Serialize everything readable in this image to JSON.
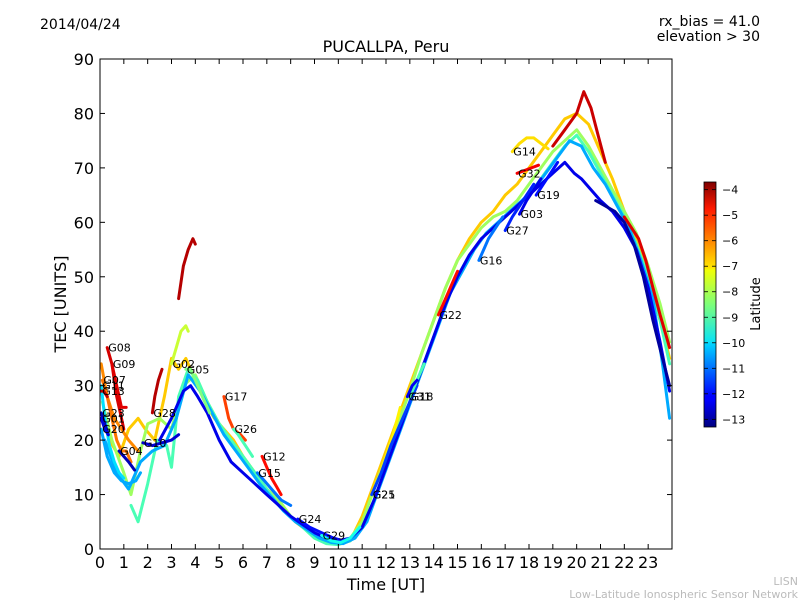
{
  "header": {
    "date": "2014/04/24",
    "rx_bias": "rx_bias = 41.0",
    "elevation": "elevation > 30"
  },
  "footer": {
    "line1": "LISN",
    "line2": "Low-Latitude Ionospheric Sensor Network"
  },
  "colorbar": {
    "label": "Latitude",
    "ticks": [
      "-4",
      "-5",
      "-6",
      "-7",
      "-8",
      "-9",
      "-10",
      "-11",
      "-12",
      "-13"
    ],
    "tick_values": [
      -4,
      -5,
      -6,
      -7,
      -8,
      -9,
      -10,
      -11,
      -12,
      -13
    ],
    "range": [
      -13.3,
      -3.7
    ]
  },
  "chart_data": {
    "type": "line",
    "title": "PUCALLPA, Peru",
    "xlabel": "Time [UT]",
    "ylabel": "TEC [UNITS]",
    "xlim": [
      0,
      24
    ],
    "ylim": [
      0,
      90
    ],
    "xticks": [
      0,
      1,
      2,
      3,
      4,
      5,
      6,
      7,
      8,
      9,
      10,
      11,
      12,
      13,
      14,
      15,
      16,
      17,
      18,
      19,
      20,
      21,
      22,
      23
    ],
    "yticks": [
      0,
      10,
      20,
      30,
      40,
      50,
      60,
      70,
      80,
      90
    ],
    "grid": false,
    "series": [
      {
        "name": "G08",
        "lat": -4.5,
        "x": [
          0.3,
          0.5,
          0.7,
          0.9,
          1.0
        ],
        "y": [
          37,
          34,
          28,
          24,
          22
        ]
      },
      {
        "name": "G09",
        "lat": -4.6,
        "x": [
          0.5,
          0.7,
          0.9,
          1.1
        ],
        "y": [
          34,
          30,
          26,
          26
        ]
      },
      {
        "name": "G07",
        "lat": -6.0,
        "x": [
          0.1,
          0.3,
          0.5,
          0.7,
          0.9,
          1.1,
          1.3
        ],
        "y": [
          31,
          28,
          24,
          20,
          18,
          18,
          16
        ]
      },
      {
        "name": "G11",
        "lat": -10.0,
        "x": [
          0.05,
          0.2,
          0.4,
          0.6,
          0.8,
          1.0
        ],
        "y": [
          30,
          24,
          19,
          16,
          14,
          13
        ]
      },
      {
        "name": "G13",
        "lat": -4.3,
        "x": [
          0.05,
          0.15,
          0.3
        ],
        "y": [
          29,
          29,
          28
        ]
      },
      {
        "name": "G23",
        "lat": -12.8,
        "x": [
          0.05,
          0.2,
          0.35
        ],
        "y": [
          25,
          23,
          21
        ]
      },
      {
        "name": "G01",
        "lat": -12.4,
        "x": [
          0.05,
          0.2,
          0.35
        ],
        "y": [
          24,
          22,
          21
        ]
      },
      {
        "name": "G20",
        "lat": -10.5,
        "x": [
          0.05,
          0.3,
          0.6,
          0.9,
          1.2,
          1.5,
          1.7
        ],
        "y": [
          22,
          17,
          14,
          12.5,
          12,
          12.5,
          14
        ]
      },
      {
        "name": "G04",
        "lat": -12.8,
        "x": [
          0.8,
          1.0,
          1.2,
          1.45
        ],
        "y": [
          18,
          17,
          16,
          14.5
        ]
      },
      {
        "name": "G10",
        "lat": -12.5,
        "x": [
          1.8,
          2.2,
          2.6,
          3.0,
          3.3
        ],
        "y": [
          19.5,
          19,
          19.5,
          20,
          21
        ]
      },
      {
        "name": "G28",
        "lat": -4.2,
        "x": [
          2.2,
          2.3,
          2.45,
          2.6
        ],
        "y": [
          25,
          28,
          31,
          33
        ]
      },
      {
        "name": "G02",
        "lat": -7.8,
        "x": [
          3.0,
          3.2,
          3.4,
          3.6,
          3.7
        ],
        "y": [
          34,
          37,
          40,
          41,
          40
        ]
      },
      {
        "name": "G05",
        "lat": -8.5,
        "x": [
          3.6,
          3.8,
          4.0,
          4.3,
          4.6
        ],
        "y": [
          33,
          33,
          31,
          28,
          25
        ]
      },
      {
        "name": "G17",
        "lat": -5.5,
        "x": [
          5.2,
          5.4,
          5.6,
          5.9,
          6.1
        ],
        "y": [
          28,
          24,
          22,
          21,
          20
        ]
      },
      {
        "name": "G26",
        "lat": -9.0,
        "x": [
          5.6,
          5.8,
          6.1,
          6.4
        ],
        "y": [
          22,
          21,
          19,
          17
        ]
      },
      {
        "name": "G12",
        "lat": -5.0,
        "x": [
          6.8,
          7.0,
          7.2,
          7.4,
          7.6
        ],
        "y": [
          17,
          15,
          13,
          11.5,
          10
        ]
      },
      {
        "name": "G15",
        "lat": -11.0,
        "x": [
          6.6,
          6.9,
          7.2,
          7.6,
          8.0
        ],
        "y": [
          14,
          12.5,
          11,
          9,
          8
        ]
      },
      {
        "name": "G24",
        "lat": -12.0,
        "x": [
          8.3,
          8.8,
          9.3,
          9.8,
          10.2
        ],
        "y": [
          5.5,
          4,
          3,
          2,
          1.5
        ]
      },
      {
        "name": "G29",
        "lat": -9.5,
        "x": [
          9.3,
          9.7,
          10.1,
          10.5,
          10.9
        ],
        "y": [
          2.5,
          1.5,
          1.2,
          2,
          4
        ]
      },
      {
        "name": "G25",
        "lat": -7.2,
        "x": [
          11.4,
          11.7,
          12.0,
          12.3,
          12.6
        ],
        "y": [
          10,
          13,
          17,
          21,
          26
        ]
      },
      {
        "name": "G21",
        "lat": -11.5,
        "x": [
          11.4,
          11.8,
          12.2,
          12.6,
          13.0,
          13.3
        ],
        "y": [
          10,
          14,
          19,
          23,
          27,
          30
        ]
      },
      {
        "name": "G18",
        "lat": -9.0,
        "x": [
          13.0,
          13.3,
          13.6
        ],
        "y": [
          28,
          31,
          34
        ]
      },
      {
        "name": "G31",
        "lat": -12.2,
        "x": [
          12.9,
          13.1,
          13.3
        ],
        "y": [
          28,
          30,
          31
        ]
      },
      {
        "name": "G22",
        "lat": -5.0,
        "x": [
          14.2,
          14.4,
          14.6,
          14.8,
          15.0
        ],
        "y": [
          43,
          45,
          47,
          49,
          51
        ]
      },
      {
        "name": "G16",
        "lat": -11.0,
        "x": [
          15.9,
          16.1,
          16.3,
          16.6,
          16.9
        ],
        "y": [
          53,
          55,
          57,
          59,
          61
        ]
      },
      {
        "name": "G27",
        "lat": -11.8,
        "x": [
          17.0,
          17.3,
          17.6,
          17.9,
          18.2
        ],
        "y": [
          58.5,
          61,
          63,
          65,
          67
        ]
      },
      {
        "name": "G03",
        "lat": -12.3,
        "x": [
          17.6,
          17.9,
          18.2,
          18.5
        ],
        "y": [
          61.5,
          64,
          66,
          68
        ]
      },
      {
        "name": "G19",
        "lat": -12.0,
        "x": [
          18.3,
          18.6,
          18.9,
          19.2
        ],
        "y": [
          65,
          67,
          69,
          71
        ]
      },
      {
        "name": "G32",
        "lat": -4.8,
        "x": [
          17.5,
          17.8,
          18.1,
          18.4
        ],
        "y": [
          69,
          69.5,
          70,
          70.5
        ]
      },
      {
        "name": "G14",
        "lat": -7.0,
        "x": [
          17.3,
          17.6,
          17.9,
          18.2,
          18.5,
          18.8
        ],
        "y": [
          73,
          74.5,
          75.5,
          75.5,
          74.5,
          73.5
        ]
      }
    ],
    "background_curves": [
      {
        "lat": -6.8,
        "x": [
          0.4,
          0.8,
          1.2,
          1.6,
          1.9,
          2.3,
          2.7,
          3.0,
          3.3,
          3.6,
          3.8,
          4.1,
          4.4,
          4.8,
          5.2,
          5.6,
          6.0,
          6.5,
          7.0,
          7.6,
          8.2,
          8.8,
          9.4,
          10.0,
          10.5,
          11.0,
          11.5,
          12.0,
          12.5,
          13.0,
          13.5,
          14.0,
          14.5,
          15.0,
          15.5,
          16.0,
          16.5,
          17.0,
          17.5,
          18.0,
          18.5,
          19.0,
          19.5,
          20.0,
          20.5,
          21.0,
          21.5,
          22.0,
          22.5,
          23.0,
          23.5,
          23.9
        ],
        "y": [
          20,
          17,
          22,
          24,
          22,
          20,
          28,
          35,
          33,
          35,
          33,
          30,
          27,
          24,
          22,
          20,
          17,
          14,
          11,
          8,
          5,
          3,
          1.5,
          0.8,
          1.5,
          6,
          12,
          18,
          24,
          30,
          36,
          42,
          48,
          53,
          57,
          60,
          62,
          65,
          67,
          70,
          73,
          76,
          79,
          80,
          78,
          73,
          68,
          62,
          57,
          50,
          42,
          35
        ]
      },
      {
        "lat": -8.2,
        "x": [
          0.1,
          0.5,
          1.0,
          1.3,
          1.7,
          2.0,
          2.5,
          3.0,
          3.5,
          4.0,
          4.5,
          5.0,
          5.5,
          6.0,
          6.5,
          7.0,
          7.5,
          8.0,
          8.5,
          9.0,
          9.5,
          10.0,
          10.5,
          11.0,
          11.5,
          12.0,
          12.5,
          13.0,
          13.5,
          14.0,
          14.5,
          15.0,
          15.5,
          16.0,
          16.5,
          17.0,
          17.5,
          18.0,
          18.5,
          19.0,
          19.5,
          20.0,
          20.5,
          21.0,
          21.5,
          22.0,
          22.5,
          23.0,
          23.5,
          23.9
        ],
        "y": [
          27,
          20,
          14,
          10,
          18,
          23,
          24,
          22,
          30,
          32,
          27,
          23,
          20,
          17,
          14,
          11,
          9,
          6,
          4,
          2.5,
          1.5,
          1,
          2,
          5,
          11,
          17,
          23,
          29,
          36,
          42,
          48,
          53,
          56,
          59,
          61,
          62,
          64,
          67,
          70,
          73,
          75,
          77,
          74,
          70,
          66,
          62,
          58,
          52,
          45,
          38
        ]
      },
      {
        "lat": -9.0,
        "x": [
          1.3,
          1.6,
          2.0,
          2.4,
          2.8,
          3.0,
          3.3,
          3.7,
          4.1,
          4.5,
          5.0,
          5.5,
          6.0,
          6.5,
          7.0,
          7.5,
          8.0,
          8.5,
          9.0,
          9.5,
          10.0,
          10.5,
          11.0,
          11.5,
          12.0,
          12.5,
          13.0,
          13.5,
          14.0,
          14.5,
          15.0,
          15.5,
          16.0,
          16.5,
          17.0,
          17.5,
          18.0,
          18.5,
          19.0,
          19.5,
          20.0,
          20.5,
          21.0,
          21.5,
          22.0,
          22.5,
          23.0,
          23.5,
          23.9
        ],
        "y": [
          8,
          5,
          12,
          20,
          19,
          15,
          28,
          33,
          31,
          27,
          23,
          20,
          17,
          14,
          11,
          8,
          6,
          4,
          2,
          1,
          0.8,
          1.5,
          4,
          9,
          15,
          21,
          27,
          33,
          39,
          45,
          50,
          54,
          57,
          59,
          61,
          63,
          65,
          68,
          71,
          74,
          76,
          73,
          69,
          65,
          61,
          56,
          50,
          42,
          34
        ]
      },
      {
        "lat": -10.5,
        "x": [
          0.2,
          0.7,
          1.2,
          1.7,
          2.2,
          2.7,
          3.2,
          3.7,
          4.2,
          4.7,
          5.2,
          5.7,
          6.2,
          6.7,
          7.2,
          7.7,
          8.2,
          8.7,
          9.2,
          9.7,
          10.2,
          10.7,
          11.2,
          11.7,
          12.2,
          12.7,
          13.2,
          13.7,
          14.2,
          14.7,
          15.2,
          15.7,
          16.2,
          16.7,
          17.2,
          17.7,
          18.2,
          18.7,
          19.2,
          19.7,
          20.2,
          20.7,
          21.2,
          21.7,
          22.2,
          22.7,
          23.2,
          23.6,
          23.9
        ],
        "y": [
          20,
          14,
          11,
          16,
          18,
          19,
          24,
          32,
          29,
          25,
          21,
          18,
          15,
          12,
          9.5,
          7,
          5,
          3.5,
          2,
          1.2,
          1,
          2,
          5,
          11,
          17,
          23,
          29,
          35,
          41,
          47,
          51,
          55,
          58,
          60,
          62,
          64,
          66,
          69,
          72,
          75,
          74,
          70,
          67,
          63,
          59,
          53,
          46,
          34,
          24
        ]
      },
      {
        "lat": -12.3,
        "x": [
          2.5,
          3.0,
          3.5,
          3.8,
          4.1,
          4.5,
          5.0,
          5.5,
          6.0,
          6.5,
          7.0,
          7.5,
          8.0,
          8.5,
          9.0,
          9.5,
          10.0,
          10.5,
          11.0,
          11.5,
          12.0,
          12.5,
          13.0,
          13.5,
          14.0,
          14.5,
          15.0,
          15.5,
          16.0,
          16.5,
          17.0,
          17.5,
          18.0,
          18.5,
          19.0,
          19.5,
          19.9,
          20.2,
          20.6,
          21.0,
          21.5,
          22.0,
          22.5,
          23.0,
          23.5,
          23.9
        ],
        "y": [
          20,
          24,
          29,
          30,
          28,
          25,
          20,
          16,
          14,
          12,
          10,
          8,
          6,
          4.5,
          3,
          2,
          1.5,
          2,
          4,
          9,
          15,
          21,
          27,
          33,
          39,
          45,
          50,
          54,
          57,
          59,
          61,
          63,
          65,
          67,
          69,
          71,
          69,
          68,
          66,
          64,
          62,
          59,
          55,
          48,
          38,
          29
        ]
      },
      {
        "lat": -4.2,
        "x": [
          3.3,
          3.5,
          3.7,
          3.9,
          4.0
        ],
        "y": [
          46,
          52,
          55,
          57,
          56
        ]
      },
      {
        "lat": -4.4,
        "x": [
          19.0,
          19.5,
          20.0,
          20.3,
          20.6,
          20.9,
          21.2
        ],
        "y": [
          74,
          77,
          80,
          84,
          81,
          76,
          71
        ]
      },
      {
        "lat": -4.6,
        "x": [
          22.0,
          22.3,
          22.6,
          22.9,
          23.2,
          23.5,
          23.9
        ],
        "y": [
          61,
          59,
          57,
          53,
          48,
          43,
          37
        ]
      },
      {
        "lat": -6.2,
        "x": [
          0.05,
          0.3,
          0.6,
          0.9,
          1.2,
          1.4,
          1.6
        ],
        "y": [
          34,
          28,
          24,
          22,
          20,
          19,
          18
        ]
      },
      {
        "lat": -13.0,
        "x": [
          20.8,
          21.2,
          21.6,
          22.0,
          22.4,
          22.8,
          23.2,
          23.6,
          23.9
        ],
        "y": [
          64,
          63,
          62,
          60,
          56,
          50,
          42,
          35,
          30
        ]
      }
    ]
  }
}
